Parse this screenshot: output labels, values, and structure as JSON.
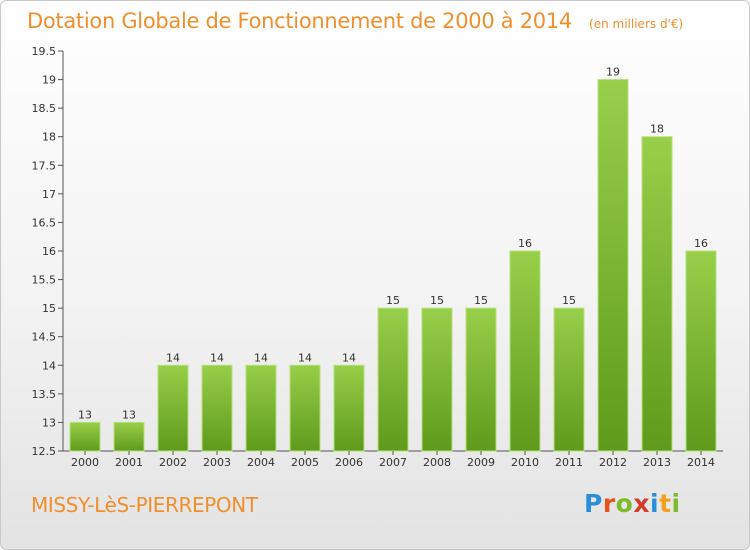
{
  "title": "Dotation Globale de Fonctionnement de 2000 à 2014",
  "subtitle": "(en milliers d'€)",
  "commune": "MISSY-LèS-PIERREPONT",
  "logo": {
    "text": "Proxiti",
    "letter_colors": [
      "#2a8fd8",
      "#e8541c",
      "#7dbb2a",
      "#d63a2a",
      "#2a8fd8",
      "#f2a21f",
      "#7dbb2a"
    ]
  },
  "colors": {
    "accent": "#f18f2c",
    "bar_top": "#98cf4a",
    "bar_bottom": "#5f9a1c"
  },
  "chart_data": {
    "type": "bar",
    "title": "Dotation Globale de Fonctionnement de 2000 à 2014",
    "subtitle": "(en milliers d'€)",
    "categories": [
      "2000",
      "2001",
      "2002",
      "2003",
      "2004",
      "2005",
      "2006",
      "2007",
      "2008",
      "2009",
      "2010",
      "2011",
      "2012",
      "2013",
      "2014"
    ],
    "values": [
      13,
      13,
      14,
      14,
      14,
      14,
      14,
      15,
      15,
      15,
      16,
      15,
      19,
      18,
      16
    ],
    "data_labels": [
      "13",
      "13",
      "14",
      "14",
      "14",
      "14",
      "14",
      "15",
      "15",
      "15",
      "16",
      "15",
      "19",
      "18",
      "16"
    ],
    "ylim": [
      12.5,
      19.5
    ],
    "y_ticks": [
      12.5,
      13,
      13.5,
      14,
      14.5,
      15,
      15.5,
      16,
      16.5,
      17,
      17.5,
      18,
      18.5,
      19,
      19.5
    ],
    "xlabel": "",
    "ylabel": "",
    "grid": false
  }
}
